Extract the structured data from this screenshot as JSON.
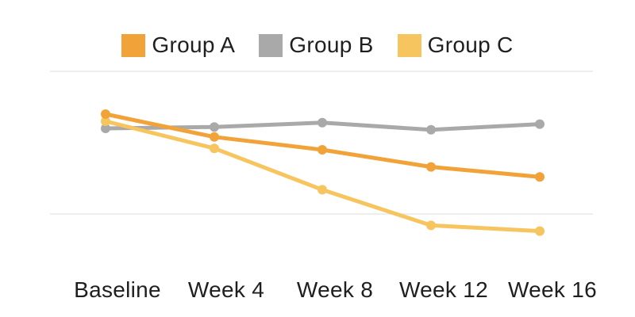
{
  "chart_data": {
    "type": "line",
    "title": "",
    "xlabel": "",
    "ylabel": "",
    "x_categories": [
      "Baseline",
      "Week 4",
      "Week 8",
      "Week 12",
      "Week 16"
    ],
    "series": [
      {
        "name": "Group A",
        "color": "#F1A33A",
        "values": [
          60,
          52,
          47.5,
          41.5,
          38
        ]
      },
      {
        "name": "Group B",
        "color": "#A9A9A9",
        "values": [
          55,
          55.5,
          57,
          54.5,
          56.5
        ]
      },
      {
        "name": "Group C",
        "color": "#F6C55F",
        "values": [
          57.5,
          48,
          33.5,
          21,
          19
        ]
      }
    ],
    "ylim": [
      0,
      100
    ],
    "y_axis_labeled": false,
    "gridline_values": [
      75,
      25
    ],
    "grid": "horizontal-only",
    "legend_position": "top",
    "markers": "circle",
    "colors": {
      "text": "#1F1F1F",
      "gridline": "#E8E8E8",
      "background": "#FFFFFF"
    }
  }
}
